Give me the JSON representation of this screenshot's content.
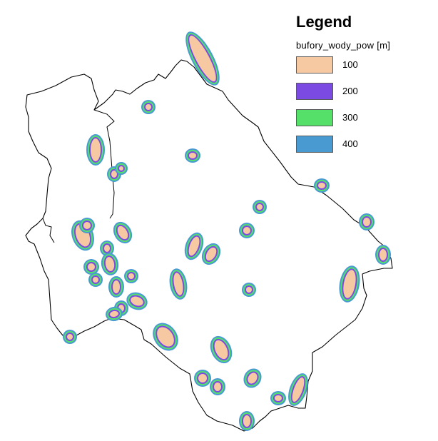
{
  "legend": {
    "title": "Legend",
    "layer_name": "bufory_wody_pow [m]",
    "items": [
      {
        "label": "100",
        "color": "#f6c9a2"
      },
      {
        "label": "200",
        "color": "#7b4ae3"
      },
      {
        "label": "300",
        "color": "#55e06a"
      },
      {
        "label": "400",
        "color": "#4a9ad2"
      }
    ]
  },
  "map": {
    "boundary_color": "#000000",
    "background": "#ffffff",
    "buffer_features_count": 42
  }
}
